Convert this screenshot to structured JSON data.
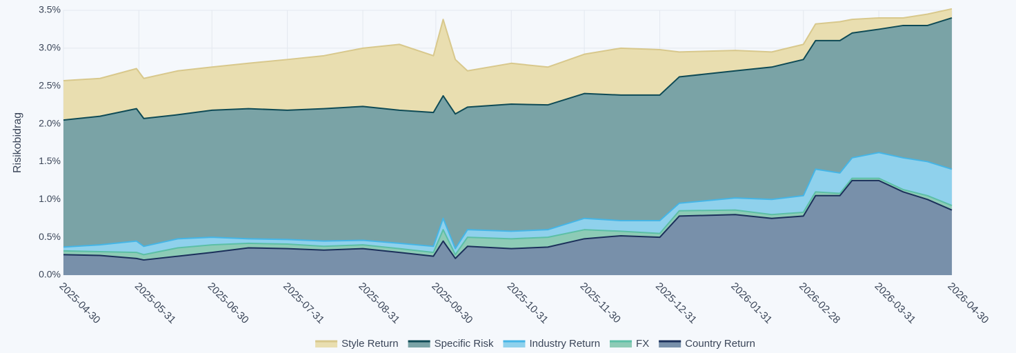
{
  "chart_data": {
    "type": "stacked_area",
    "y_axis_label": "Risikobidrag",
    "x": [
      "2025-04-30",
      "2025-05-15",
      "2025-05-30",
      "2025-06-02",
      "2025-06-16",
      "2025-06-30",
      "2025-07-15",
      "2025-07-31",
      "2025-08-15",
      "2025-08-31",
      "2025-09-15",
      "2025-09-29",
      "2025-10-03",
      "2025-10-08",
      "2025-10-13",
      "2025-10-31",
      "2025-11-15",
      "2025-11-30",
      "2025-12-15",
      "2025-12-31",
      "2026-01-08",
      "2026-01-31",
      "2026-02-15",
      "2026-02-28",
      "2026-03-05",
      "2026-03-15",
      "2026-03-20",
      "2026-03-31",
      "2026-04-10",
      "2026-04-20",
      "2026-04-30"
    ],
    "series": [
      {
        "name": "Style Return",
        "color": "#e9deb0",
        "line_color": "#d8c88c",
        "values": [
          0.52,
          0.5,
          0.53,
          0.53,
          0.58,
          0.57,
          0.6,
          0.67,
          0.7,
          0.77,
          0.87,
          0.75,
          1.01,
          0.72,
          0.48,
          0.54,
          0.5,
          0.52,
          0.62,
          0.6,
          0.33,
          0.27,
          0.2,
          0.2,
          0.22,
          0.25,
          0.18,
          0.15,
          0.1,
          0.15,
          0.12
        ]
      },
      {
        "name": "Specific Risk",
        "color": "#7aa3a6",
        "line_color": "#0e4a55",
        "values": [
          1.68,
          1.7,
          1.75,
          1.69,
          1.64,
          1.68,
          1.72,
          1.71,
          1.75,
          1.77,
          1.76,
          1.77,
          1.62,
          1.78,
          1.62,
          1.68,
          1.65,
          1.65,
          1.66,
          1.66,
          1.67,
          1.68,
          1.75,
          1.8,
          1.7,
          1.75,
          1.65,
          1.63,
          1.75,
          1.8,
          2.0
        ]
      },
      {
        "name": "Industry Return",
        "color": "#8fd1ec",
        "line_color": "#45b5e6",
        "values": [
          0.05,
          0.09,
          0.15,
          0.11,
          0.12,
          0.1,
          0.06,
          0.06,
          0.07,
          0.06,
          0.07,
          0.08,
          0.15,
          0.08,
          0.1,
          0.1,
          0.1,
          0.15,
          0.14,
          0.17,
          0.1,
          0.16,
          0.2,
          0.22,
          0.3,
          0.27,
          0.27,
          0.34,
          0.42,
          0.45,
          0.48
        ]
      },
      {
        "name": "FX",
        "color": "#8dcbb6",
        "line_color": "#5cbfa6",
        "values": [
          0.05,
          0.05,
          0.08,
          0.07,
          0.11,
          0.1,
          0.06,
          0.06,
          0.05,
          0.05,
          0.05,
          0.05,
          0.15,
          0.05,
          0.12,
          0.13,
          0.13,
          0.12,
          0.06,
          0.05,
          0.07,
          0.06,
          0.05,
          0.05,
          0.05,
          0.03,
          0.03,
          0.03,
          0.03,
          0.05,
          0.06
        ]
      },
      {
        "name": "Country Return",
        "color": "#7890aa",
        "line_color": "#1b2f5a",
        "values": [
          0.27,
          0.26,
          0.22,
          0.2,
          0.25,
          0.3,
          0.36,
          0.35,
          0.33,
          0.35,
          0.3,
          0.25,
          0.45,
          0.22,
          0.38,
          0.35,
          0.37,
          0.48,
          0.52,
          0.5,
          0.78,
          0.8,
          0.75,
          0.78,
          1.05,
          1.05,
          1.25,
          1.25,
          1.1,
          1.0,
          0.86
        ]
      }
    ],
    "xlim": [
      "2025-04-30",
      "2026-04-30"
    ],
    "xticks": [
      "2025-04-30",
      "2025-05-31",
      "2025-06-30",
      "2025-07-31",
      "2025-08-31",
      "2025-09-30",
      "2025-10-31",
      "2025-11-30",
      "2025-12-31",
      "2026-01-31",
      "2026-02-28",
      "2026-03-31",
      "2026-04-30"
    ],
    "ylim": [
      0,
      3.5
    ],
    "yticks": [
      {
        "value": 0,
        "label": "0.0%"
      },
      {
        "value": 0.5,
        "label": "0.5%"
      },
      {
        "value": 1,
        "label": "1.0%"
      },
      {
        "value": 1.5,
        "label": "1.5%"
      },
      {
        "value": 2,
        "label": "2.0%"
      },
      {
        "value": 2.5,
        "label": "2.5%"
      },
      {
        "value": 3,
        "label": "3.0%"
      },
      {
        "value": 3.5,
        "label": "3.5%"
      }
    ],
    "grid": true,
    "legend": "bottom"
  }
}
